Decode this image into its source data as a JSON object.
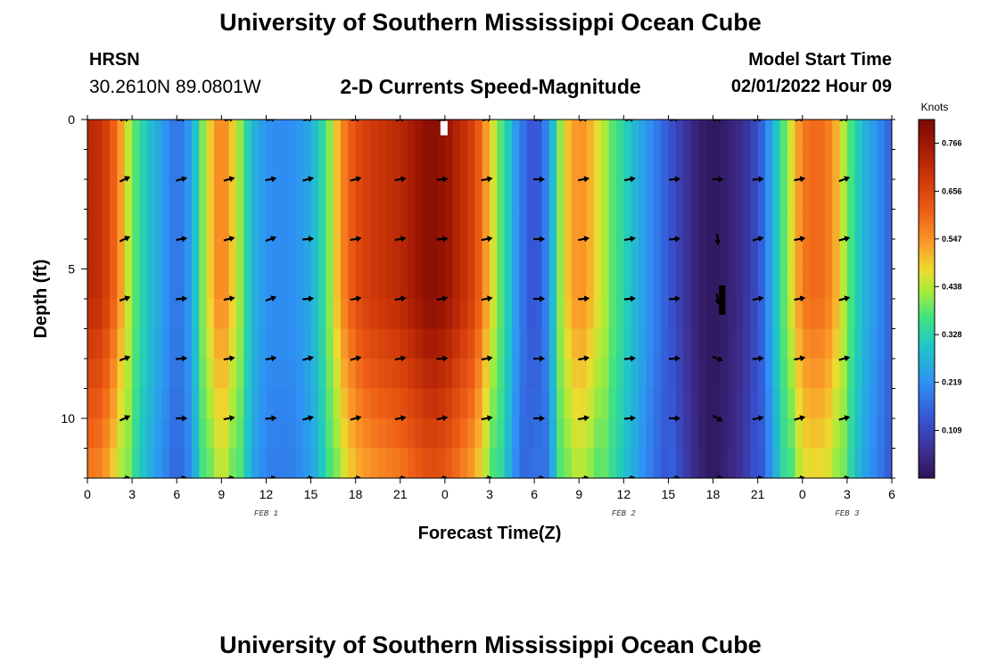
{
  "header": {
    "title": "University of Southern Mississippi Ocean Cube",
    "station": "HRSN",
    "coordinates": "30.2610N  89.0801W",
    "subtitle": "2-D Currents Speed-Magnitude",
    "model_start_label": "Model Start Time",
    "model_start_value": "02/01/2022 Hour 09"
  },
  "footer": {
    "title": "University of Southern Mississippi Ocean Cube"
  },
  "chart_data": {
    "type": "heatmap",
    "title": "2-D Currents Speed-Magnitude",
    "xlabel": "Forecast Time(Z)",
    "ylabel": "Depth (ft)",
    "x_range_hours": [
      0,
      54
    ],
    "y_range_ft": [
      0,
      12
    ],
    "x_ticks": [
      {
        "hour": 0,
        "label": "0"
      },
      {
        "hour": 3,
        "label": "3"
      },
      {
        "hour": 6,
        "label": "6"
      },
      {
        "hour": 9,
        "label": "9"
      },
      {
        "hour": 12,
        "label": "12"
      },
      {
        "hour": 15,
        "label": "15"
      },
      {
        "hour": 18,
        "label": "18"
      },
      {
        "hour": 21,
        "label": "21"
      },
      {
        "hour": 24,
        "label": "0"
      },
      {
        "hour": 27,
        "label": "3"
      },
      {
        "hour": 30,
        "label": "6"
      },
      {
        "hour": 33,
        "label": "9"
      },
      {
        "hour": 36,
        "label": "12"
      },
      {
        "hour": 39,
        "label": "15"
      },
      {
        "hour": 42,
        "label": "18"
      },
      {
        "hour": 45,
        "label": "21"
      },
      {
        "hour": 48,
        "label": "0"
      },
      {
        "hour": 51,
        "label": "3"
      },
      {
        "hour": 54,
        "label": "6"
      }
    ],
    "y_ticks": [
      {
        "depth": 0,
        "label": "0"
      },
      {
        "depth": 5,
        "label": "5"
      },
      {
        "depth": 10,
        "label": "10"
      }
    ],
    "day_labels": [
      {
        "hour": 12,
        "label": "FEB 1"
      },
      {
        "hour": 36,
        "label": "FEB 2"
      },
      {
        "hour": 51,
        "label": "FEB 3"
      }
    ],
    "colorbar": {
      "unit": "Knots",
      "range": [
        0,
        0.82
      ],
      "ticks": [
        "0.766",
        "0.656",
        "0.547",
        "0.438",
        "0.328",
        "0.219",
        "0.109"
      ],
      "tick_values": [
        0.766,
        0.656,
        0.547,
        0.438,
        0.328,
        0.219,
        0.109
      ]
    },
    "speed_profile_by_hour": [
      [
        0,
        0.72
      ],
      [
        1,
        0.7
      ],
      [
        2,
        0.58
      ],
      [
        3,
        0.4
      ],
      [
        4,
        0.3
      ],
      [
        5,
        0.24
      ],
      [
        6,
        0.17
      ],
      [
        7,
        0.24
      ],
      [
        8,
        0.46
      ],
      [
        9,
        0.58
      ],
      [
        10,
        0.46
      ],
      [
        11,
        0.28
      ],
      [
        12,
        0.22
      ],
      [
        13,
        0.21
      ],
      [
        14,
        0.22
      ],
      [
        15,
        0.26
      ],
      [
        16,
        0.36
      ],
      [
        17,
        0.55
      ],
      [
        18,
        0.64
      ],
      [
        19,
        0.68
      ],
      [
        20,
        0.7
      ],
      [
        21,
        0.72
      ],
      [
        22,
        0.76
      ],
      [
        23,
        0.8
      ],
      [
        24,
        0.78
      ],
      [
        25,
        0.72
      ],
      [
        26,
        0.66
      ],
      [
        27,
        0.5
      ],
      [
        28,
        0.34
      ],
      [
        29,
        0.2
      ],
      [
        30,
        0.12
      ],
      [
        31,
        0.22
      ],
      [
        32,
        0.48
      ],
      [
        33,
        0.56
      ],
      [
        34,
        0.5
      ],
      [
        35,
        0.4
      ],
      [
        36,
        0.33
      ],
      [
        37,
        0.26
      ],
      [
        38,
        0.2
      ],
      [
        39,
        0.14
      ],
      [
        40,
        0.08
      ],
      [
        41,
        0.03
      ],
      [
        42,
        0.01
      ],
      [
        43,
        0.03
      ],
      [
        44,
        0.06
      ],
      [
        45,
        0.12
      ],
      [
        46,
        0.26
      ],
      [
        47,
        0.42
      ],
      [
        48,
        0.58
      ],
      [
        49,
        0.6
      ],
      [
        50,
        0.56
      ],
      [
        51,
        0.4
      ],
      [
        52,
        0.28
      ],
      [
        53,
        0.22
      ],
      [
        54,
        0.15
      ]
    ],
    "arrow_hours": [
      2.5,
      6.3,
      9.5,
      12.3,
      14.8,
      18.0,
      21.0,
      23.8,
      26.8,
      30.3,
      33.3,
      36.4,
      39.4,
      42.3,
      45.0,
      47.8,
      50.8
    ],
    "arrow_depths_ft": [
      2,
      4,
      6,
      8,
      10
    ],
    "arrow_directions_deg": [
      [
        -25,
        -15,
        -15,
        -10,
        -15,
        -15,
        -10,
        -5,
        -10,
        0,
        -10,
        -10,
        -5,
        0,
        -5,
        -10,
        -20
      ],
      [
        -25,
        -10,
        -15,
        -20,
        -5,
        -10,
        -10,
        -5,
        -10,
        0,
        -10,
        -10,
        -5,
        85,
        -15,
        -10,
        -15
      ],
      [
        -20,
        -5,
        -10,
        -20,
        -5,
        -10,
        -10,
        -10,
        -10,
        0,
        -5,
        -5,
        -5,
        80,
        -10,
        -10,
        -15
      ],
      [
        -20,
        -5,
        -10,
        -10,
        -15,
        -15,
        -10,
        -5,
        -10,
        0,
        -10,
        -5,
        -5,
        20,
        -5,
        -10,
        -15
      ],
      [
        -25,
        0,
        -10,
        -5,
        -15,
        -15,
        -10,
        -10,
        -10,
        0,
        -10,
        -5,
        0,
        30,
        -10,
        -15,
        -15
      ]
    ]
  }
}
